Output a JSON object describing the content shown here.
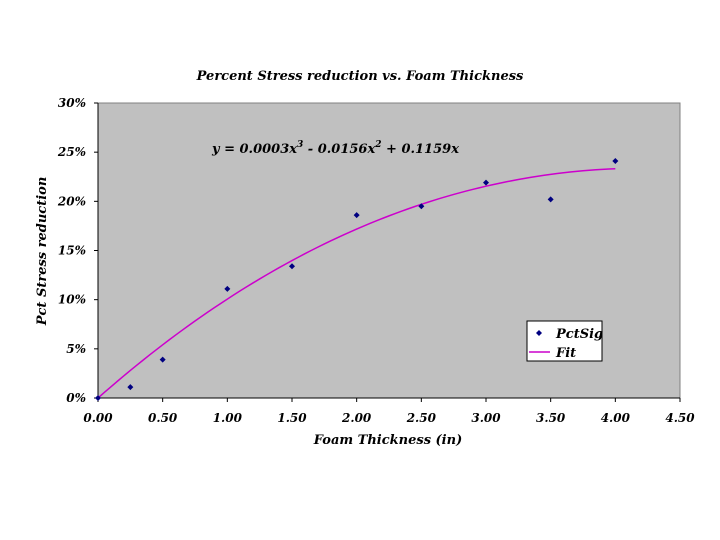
{
  "chart_data": {
    "type": "scatter",
    "title": "Percent Stress reduction vs. Foam Thickness",
    "xlabel": "Foam Thickness (in)",
    "ylabel": "Pct Stress reduction",
    "xlim": [
      0,
      4.5
    ],
    "ylim": [
      0,
      0.3
    ],
    "x_ticks": [
      "0.00",
      "0.50",
      "1.00",
      "1.50",
      "2.00",
      "2.50",
      "3.00",
      "3.50",
      "4.00",
      "4.50"
    ],
    "y_ticks": [
      "0%",
      "5%",
      "10%",
      "15%",
      "20%",
      "25%",
      "30%"
    ],
    "grid": false,
    "legend_position": "bottom-right",
    "series": [
      {
        "name": "PctSig",
        "kind": "markers",
        "color": "#000080",
        "x": [
          0.0,
          0.25,
          0.5,
          1.0,
          1.5,
          2.0,
          2.5,
          3.0,
          3.5,
          4.0
        ],
        "y": [
          0.0,
          0.011,
          0.039,
          0.111,
          0.134,
          0.186,
          0.195,
          0.219,
          0.202,
          0.241
        ]
      },
      {
        "name": "Fit",
        "kind": "line",
        "color": "#cc00cc",
        "coefficients": {
          "x3": 0.0003,
          "x2": -0.0156,
          "x1": 0.1159
        },
        "x_range": [
          0,
          4.0
        ]
      }
    ],
    "equation": {
      "prefix": "y = 0.0003x",
      "exp1": "3",
      "mid": " - 0.0156x",
      "exp2": "2",
      "suffix": " + 0.1159x"
    },
    "plot_area_color": "#c0c0c0"
  }
}
